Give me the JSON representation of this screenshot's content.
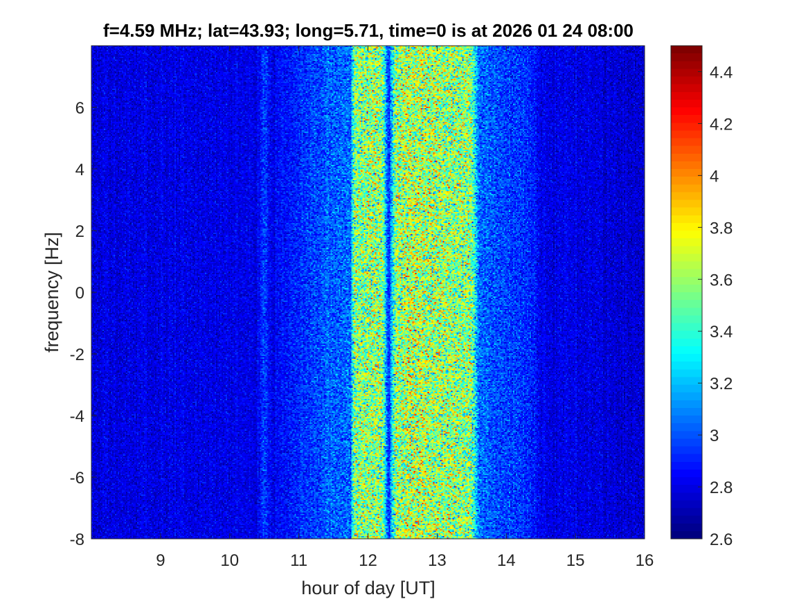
{
  "chart_data": {
    "type": "heatmap",
    "title": "f=4.59 MHz;  lat=43.93; long=5.71, time=0 is at 2026 01 24 08:00",
    "xlabel": "hour of day [UT]",
    "ylabel": "frequency [Hz]",
    "xlim": [
      8,
      16
    ],
    "ylim": [
      -8,
      8
    ],
    "xticks": [
      9,
      10,
      11,
      12,
      13,
      14,
      15,
      16
    ],
    "xtick_labels": [
      "9",
      "10",
      "11",
      "12",
      "13",
      "14",
      "15",
      "16"
    ],
    "yticks": [
      -8,
      -6,
      -4,
      -2,
      0,
      2,
      4,
      6
    ],
    "ytick_labels": [
      "-8",
      "-6",
      "-4",
      "-2",
      "0",
      "2",
      "4",
      "6"
    ],
    "colorbar": {
      "colormap": "jet",
      "clim": [
        2.6,
        4.5
      ],
      "ticks": [
        2.6,
        2.8,
        3.0,
        3.2,
        3.4,
        3.6,
        3.8,
        4.0,
        4.2,
        4.4
      ],
      "tick_labels": [
        "2.6",
        "2.8",
        "3",
        "3.2",
        "3.4",
        "3.6",
        "3.8",
        "4",
        "4.2",
        "4.4"
      ]
    },
    "intensity_profile": {
      "x_hours": [
        8.0,
        10.4,
        10.5,
        10.6,
        10.9,
        11.4,
        11.75,
        11.8,
        12.2,
        12.3,
        12.4,
        12.6,
        13.5,
        13.6,
        14.4,
        14.5,
        16.0
      ],
      "level": [
        2.78,
        2.8,
        2.95,
        2.82,
        2.88,
        3.0,
        3.05,
        3.55,
        3.6,
        2.9,
        3.6,
        3.65,
        3.55,
        3.05,
        2.88,
        2.8,
        2.76
      ]
    },
    "grid": false
  }
}
